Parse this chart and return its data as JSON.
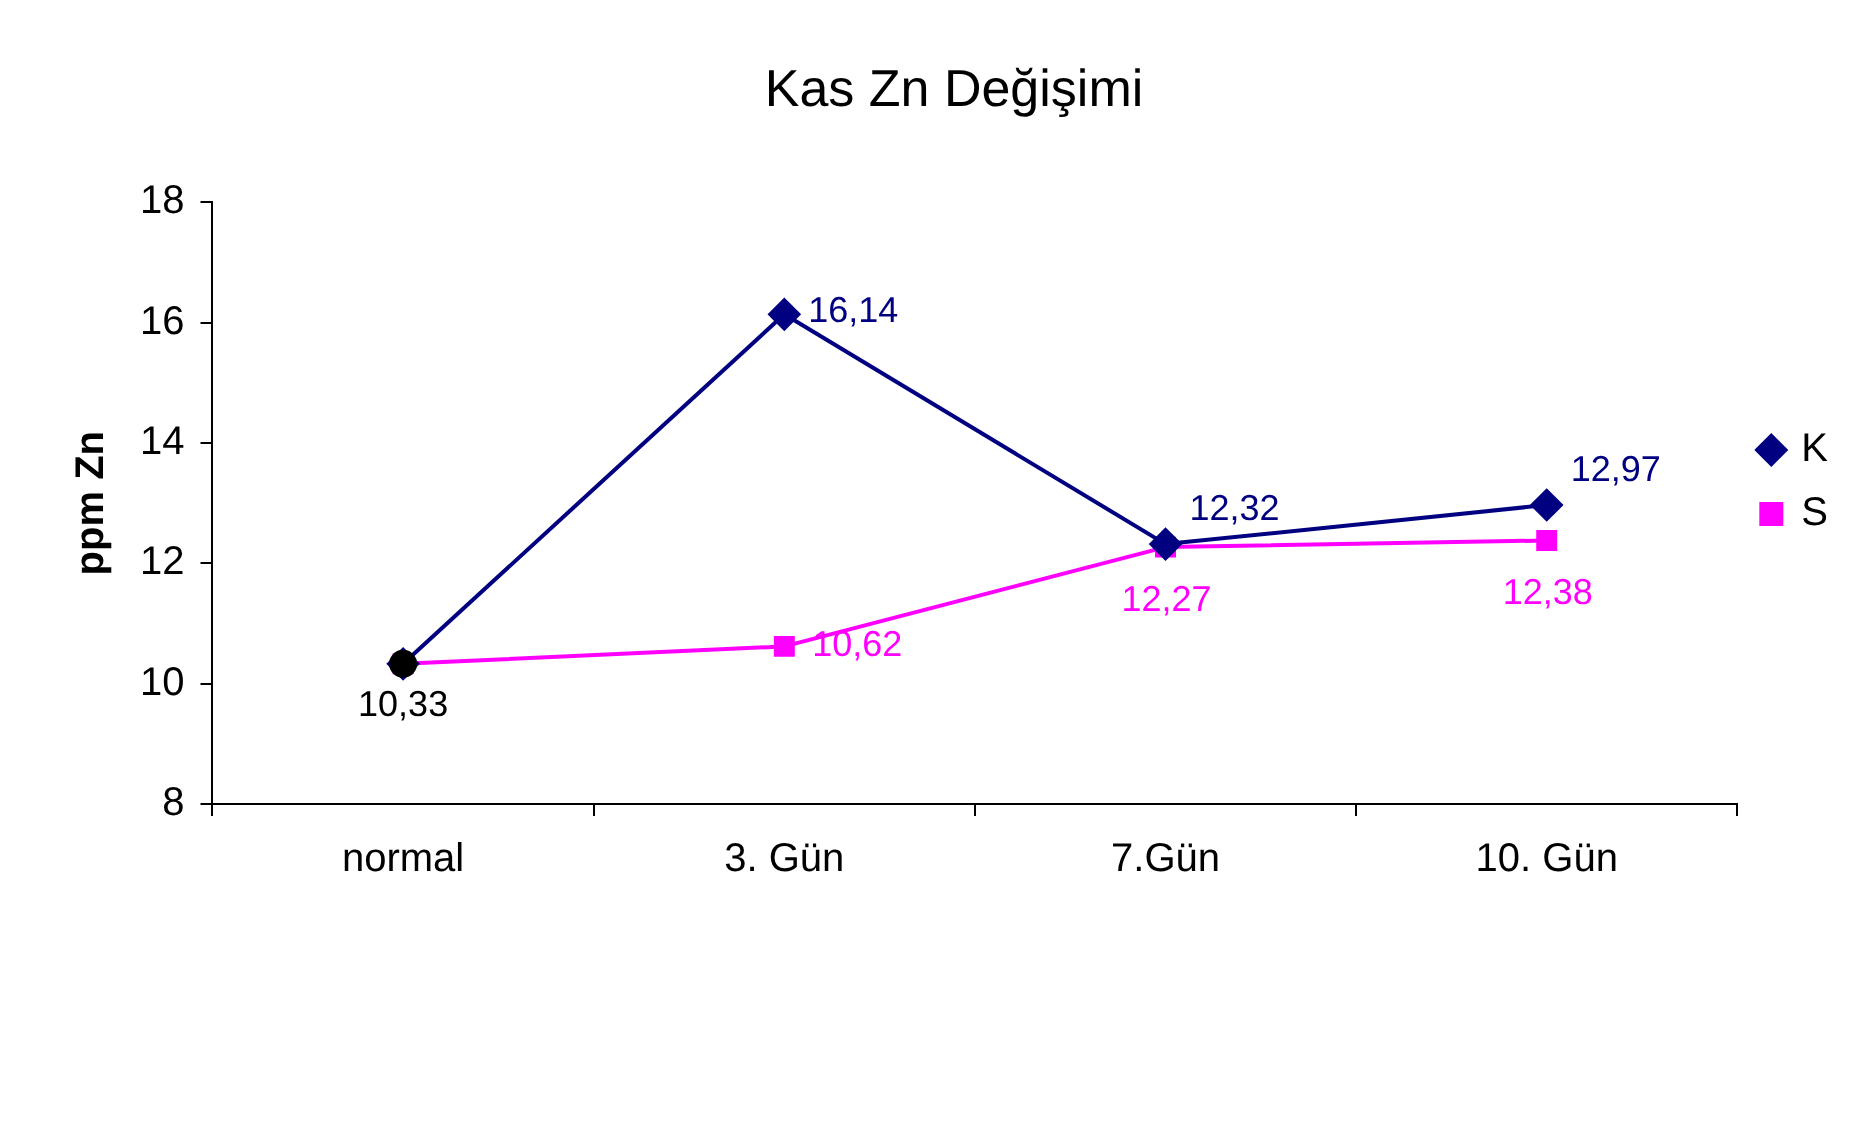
{
  "chart_data": {
    "type": "line",
    "title": "Kas Zn Değişimi",
    "ylabel": "ppm Zn",
    "categories": [
      "normal",
      "3. Gün",
      "7.Gün",
      "10. Gün"
    ],
    "ylim": [
      8,
      18
    ],
    "yticks": [
      8,
      10,
      12,
      14,
      16,
      18
    ],
    "grid": false,
    "legend": "right",
    "series": [
      {
        "name": "K",
        "color": "#000080",
        "marker": "diamond",
        "values": [
          10.33,
          16.14,
          12.32,
          12.97
        ],
        "value_labels": [
          null,
          "16,14",
          "12,32",
          "12,97"
        ]
      },
      {
        "name": "S",
        "color": "#ff00ff",
        "marker": "square",
        "values": [
          10.33,
          10.62,
          12.27,
          12.38
        ],
        "value_labels": [
          null,
          "10,62",
          "12,27",
          "12,38"
        ]
      },
      {
        "type": "scatter",
        "color": "#000000",
        "marker": "circle",
        "x": [
          "normal"
        ],
        "values": [
          10.33
        ],
        "value_labels": [
          "10,33"
        ]
      }
    ]
  }
}
